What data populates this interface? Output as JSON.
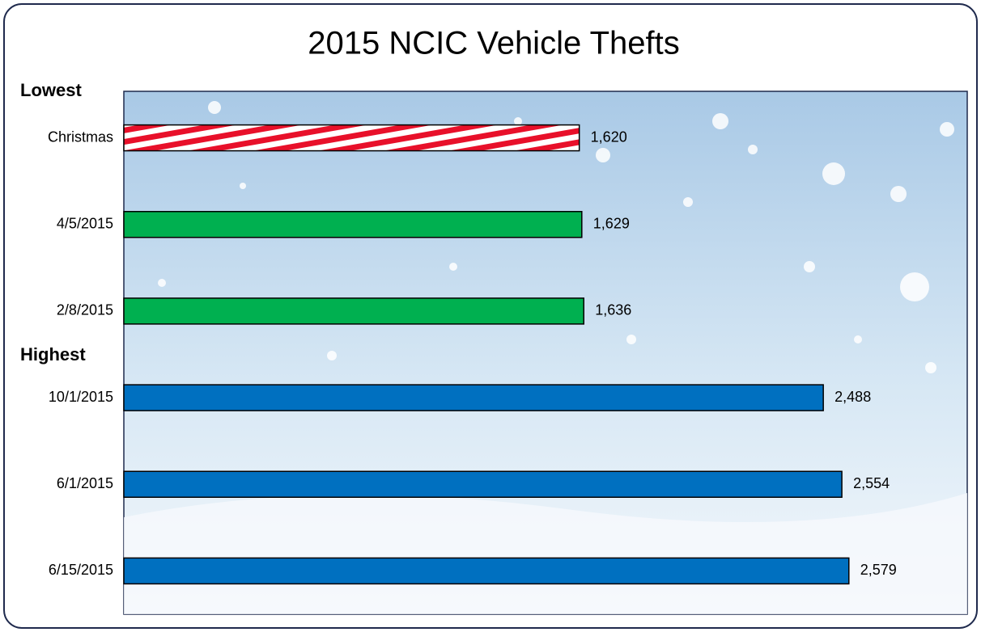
{
  "chart_data": {
    "type": "bar",
    "orientation": "horizontal",
    "title": "2015 NCIC Vehicle Thefts",
    "annotations": [
      "Lowest",
      "Highest"
    ],
    "categories": [
      "Christmas",
      "4/5/2015",
      "2/8/2015",
      "10/1/2015",
      "6/1/2015",
      "6/15/2015"
    ],
    "values": [
      1620,
      1629,
      1636,
      2488,
      2554,
      2579
    ],
    "value_labels": [
      "1,620",
      "1,629",
      "1,636",
      "2,488",
      "2,554",
      "2,579"
    ],
    "colors": [
      "#e8102a",
      "#00b050",
      "#00b050",
      "#0070c0",
      "#0070c0",
      "#0070c0"
    ],
    "striped": [
      true,
      false,
      false,
      false,
      false,
      false
    ],
    "xlim": [
      0,
      3000
    ]
  }
}
